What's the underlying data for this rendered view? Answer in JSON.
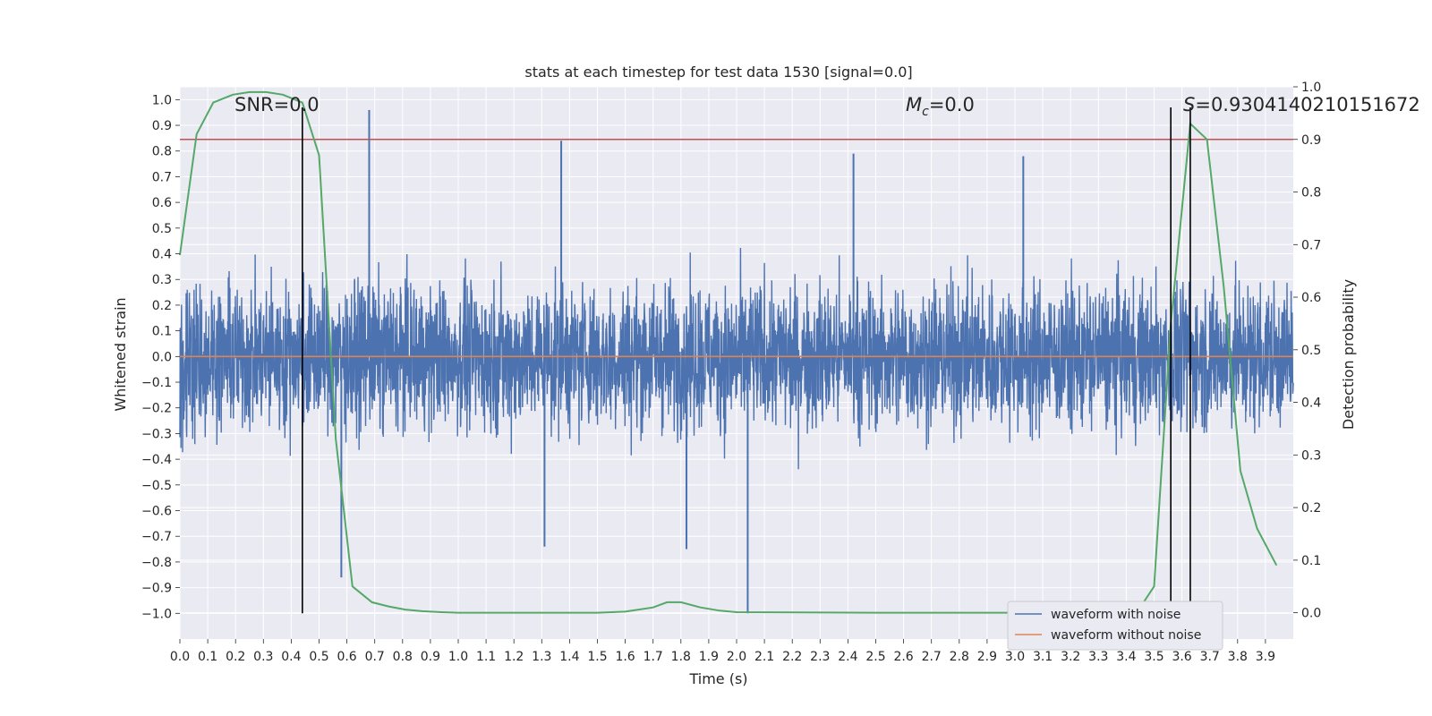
{
  "chart_data": {
    "type": "line",
    "title": "stats at each timestep for test data 1530 [signal=0.0]",
    "xlabel": "Time (s)",
    "ylabel": "Whitened strain",
    "ylabel_right": "Detection probability",
    "xlim": [
      0.0,
      4.0
    ],
    "ylim": [
      -1.1,
      1.05
    ],
    "ylim_right": [
      -0.05,
      1.0
    ],
    "x_ticks": [
      "0.0",
      "0.1",
      "0.2",
      "0.3",
      "0.4",
      "0.5",
      "0.6",
      "0.7",
      "0.8",
      "0.9",
      "1.0",
      "1.1",
      "1.2",
      "1.3",
      "1.4",
      "1.5",
      "1.6",
      "1.7",
      "1.8",
      "1.9",
      "2.0",
      "2.1",
      "2.2",
      "2.3",
      "2.4",
      "2.5",
      "2.6",
      "2.7",
      "2.8",
      "2.9",
      "3.0",
      "3.1",
      "3.2",
      "3.3",
      "3.4",
      "3.5",
      "3.6",
      "3.7",
      "3.8",
      "3.9"
    ],
    "y_ticks_left": [
      "1.0",
      "0.9",
      "0.8",
      "0.7",
      "0.6",
      "0.5",
      "0.4",
      "0.3",
      "0.2",
      "0.1",
      "0.0",
      "−0.1",
      "−0.2",
      "−0.3",
      "−0.4",
      "−0.5",
      "−0.6",
      "−0.7",
      "−0.8",
      "−0.9",
      "−1.0"
    ],
    "y_ticks_right": [
      "1.0",
      "0.9",
      "0.8",
      "0.7",
      "0.6",
      "0.5",
      "0.4",
      "0.3",
      "0.2",
      "0.1",
      "0.0"
    ],
    "annotations": {
      "snr_text": "SNR=0.0",
      "mc_text_symbol": "M",
      "mc_text_sub": "c",
      "mc_text_rest": "=0.0",
      "s_text_symbol": "S",
      "s_text_rest": "=0.9304140210151672"
    },
    "threshold_right": 0.9,
    "vertical_lines_x": [
      0.44,
      3.56,
      3.63
    ],
    "noise_spikes": [
      {
        "x": 0.68,
        "y": 0.96
      },
      {
        "x": 1.37,
        "y": 0.84
      },
      {
        "x": 2.42,
        "y": 0.79
      },
      {
        "x": 3.03,
        "y": 0.78
      },
      {
        "x": 2.04,
        "y": -1.0
      },
      {
        "x": 1.82,
        "y": -0.75
      },
      {
        "x": 1.31,
        "y": -0.74
      },
      {
        "x": 0.58,
        "y": -0.86
      }
    ],
    "series": [
      {
        "name": "waveform with noise",
        "color": "#4c72b0",
        "amplitude_envelope": 0.5
      },
      {
        "name": "waveform without noise",
        "color": "#dd8452",
        "x": [
          0.0,
          4.0
        ],
        "y": [
          0.0,
          0.0
        ]
      },
      {
        "name": "detection probability",
        "color": "#55a868",
        "axis": "right",
        "x": [
          0.0,
          0.06,
          0.12,
          0.19,
          0.25,
          0.31,
          0.37,
          0.44,
          0.5,
          0.56,
          0.62,
          0.69,
          0.75,
          0.81,
          0.87,
          0.94,
          1.0,
          1.25,
          1.5,
          1.6,
          1.7,
          1.75,
          1.8,
          1.87,
          1.94,
          2.0,
          2.5,
          3.0,
          3.25,
          3.45,
          3.5,
          3.56,
          3.63,
          3.69,
          3.75,
          3.81,
          3.87,
          3.94
        ],
        "y": [
          0.68,
          0.91,
          0.97,
          0.985,
          0.99,
          0.99,
          0.985,
          0.97,
          0.87,
          0.33,
          0.05,
          0.02,
          0.012,
          0.006,
          0.003,
          0.001,
          0.0,
          0.0,
          0.0,
          0.002,
          0.01,
          0.02,
          0.02,
          0.01,
          0.004,
          0.001,
          0.0,
          0.0,
          0.0,
          0.01,
          0.05,
          0.55,
          0.93,
          0.9,
          0.62,
          0.27,
          0.16,
          0.09
        ]
      }
    ],
    "legend_position": "lower right",
    "grid": true,
    "background_color": "#eaeaf2",
    "threshold_color": "#c44e52",
    "marker_line_color": "#000000"
  }
}
